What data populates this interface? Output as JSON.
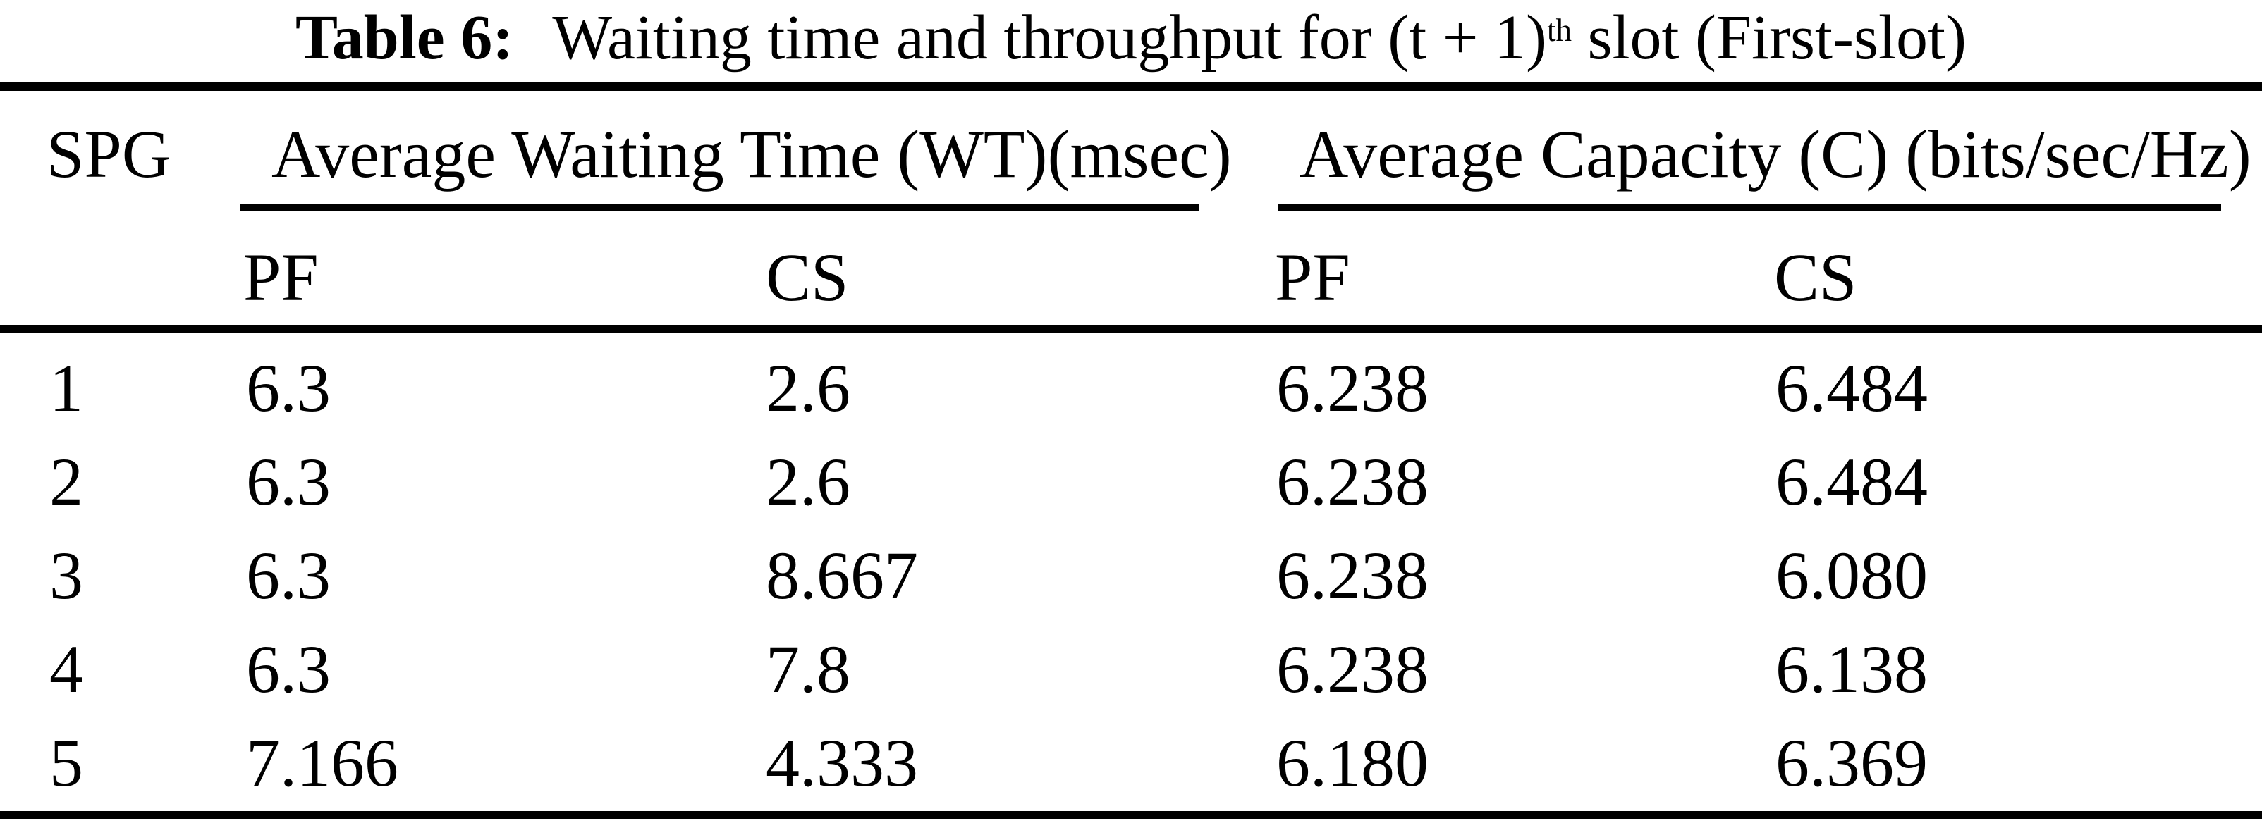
{
  "caption": {
    "label": "Table 6:",
    "text_before_sup": "Waiting time and throughput for (t + 1)",
    "superscript": "th",
    "text_after_sup": " slot (First-slot)"
  },
  "table": {
    "spg_header": "SPG",
    "group_headers": {
      "waiting_time": "Average Waiting Time (WT)(msec)",
      "capacity": "Average Capacity (C) (bits/sec/Hz)"
    },
    "sub_headers": {
      "wt_pf": "PF",
      "wt_cs": "CS",
      "c_pf": "PF",
      "c_cs": "CS"
    },
    "rows": [
      {
        "spg": "1",
        "wt_pf": "6.3",
        "wt_cs": "2.6",
        "c_pf": "6.238",
        "c_cs": "6.484"
      },
      {
        "spg": "2",
        "wt_pf": "6.3",
        "wt_cs": "2.6",
        "c_pf": "6.238",
        "c_cs": "6.484"
      },
      {
        "spg": "3",
        "wt_pf": "6.3",
        "wt_cs": "8.667",
        "c_pf": "6.238",
        "c_cs": "6.080"
      },
      {
        "spg": "4",
        "wt_pf": "6.3",
        "wt_cs": "7.8",
        "c_pf": "6.238",
        "c_cs": "6.138"
      },
      {
        "spg": "5",
        "wt_pf": "7.166",
        "wt_cs": "4.333",
        "c_pf": "6.180",
        "c_cs": "6.369"
      }
    ]
  },
  "colors": {
    "background": "#ffffff",
    "text": "#000000",
    "rule": "#000000"
  }
}
